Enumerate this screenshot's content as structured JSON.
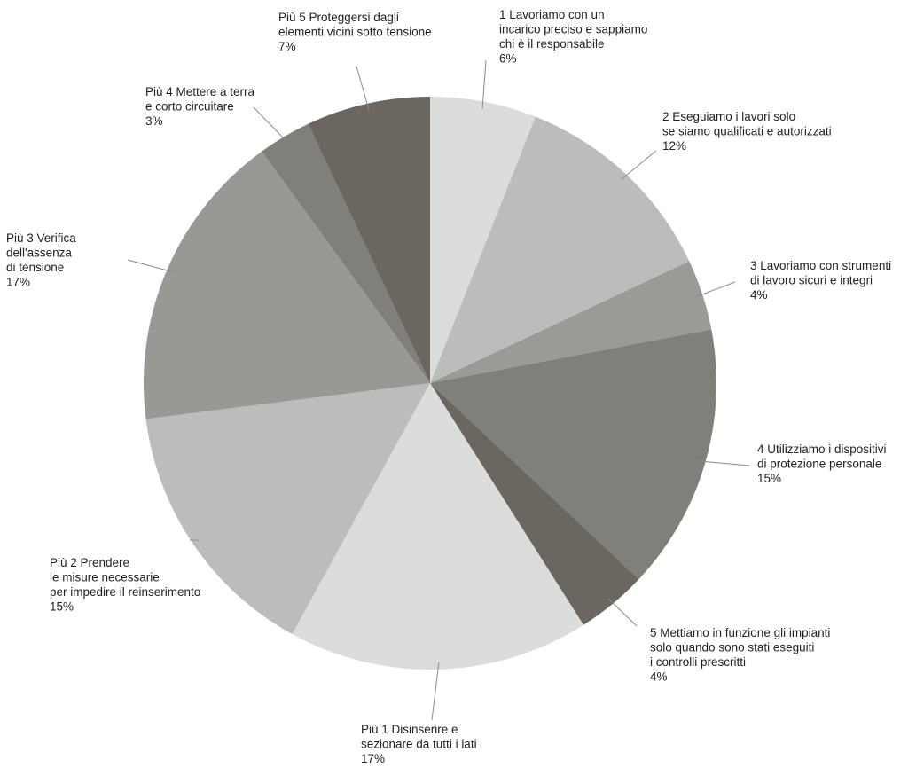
{
  "chart_data": {
    "type": "pie",
    "slices": [
      {
        "lines": [
          "1 Lavoriamo con un",
          "incarico preciso e sappiamo",
          "chi è il responsabile",
          "6%"
        ],
        "value": 6,
        "color": "#dcdcda"
      },
      {
        "lines": [
          "2 Eseguiamo i lavori solo",
          "se siamo qualificati e autorizzati",
          "12%"
        ],
        "value": 12,
        "color": "#bcbcba"
      },
      {
        "lines": [
          "3 Lavoriamo con strumenti",
          "di lavoro sicuri e integri",
          "4%"
        ],
        "value": 4,
        "color": "#9b9a96"
      },
      {
        "lines": [
          "4 Utilizziamo i dispositivi",
          "di protezione personale",
          "15%"
        ],
        "value": 15,
        "color": "#80807b"
      },
      {
        "lines": [
          "5 Mettiamo in funzione gli impianti",
          "solo quando sono stati eseguiti",
          "i controlli prescritti",
          "4%"
        ],
        "value": 4,
        "color": "#6b6760"
      },
      {
        "lines": [
          "Più 1 Disinserire e",
          "sezionare da tutti i lati",
          "17%"
        ],
        "value": 17,
        "color": "#dcdcda"
      },
      {
        "lines": [
          "Più 2 Prendere",
          "le misure necessarie",
          "per impedire il reinserimento",
          "15%"
        ],
        "value": 15,
        "color": "#bcbcba"
      },
      {
        "lines": [
          "Più 3 Verifica",
          "dell'assenza",
          "di tensione",
          "17%"
        ],
        "value": 17,
        "color": "#999894"
      },
      {
        "lines": [
          "Più 4 Mettere a terra",
          "e corto circuitare",
          "3%"
        ],
        "value": 3,
        "color": "#807f7a"
      },
      {
        "lines": [
          "Più 5 Proteggersi dagli",
          "elementi vicini sotto tensione",
          "7%"
        ],
        "value": 7,
        "color": "#6b6760"
      }
    ],
    "start": "top",
    "direction": "clockwise"
  }
}
